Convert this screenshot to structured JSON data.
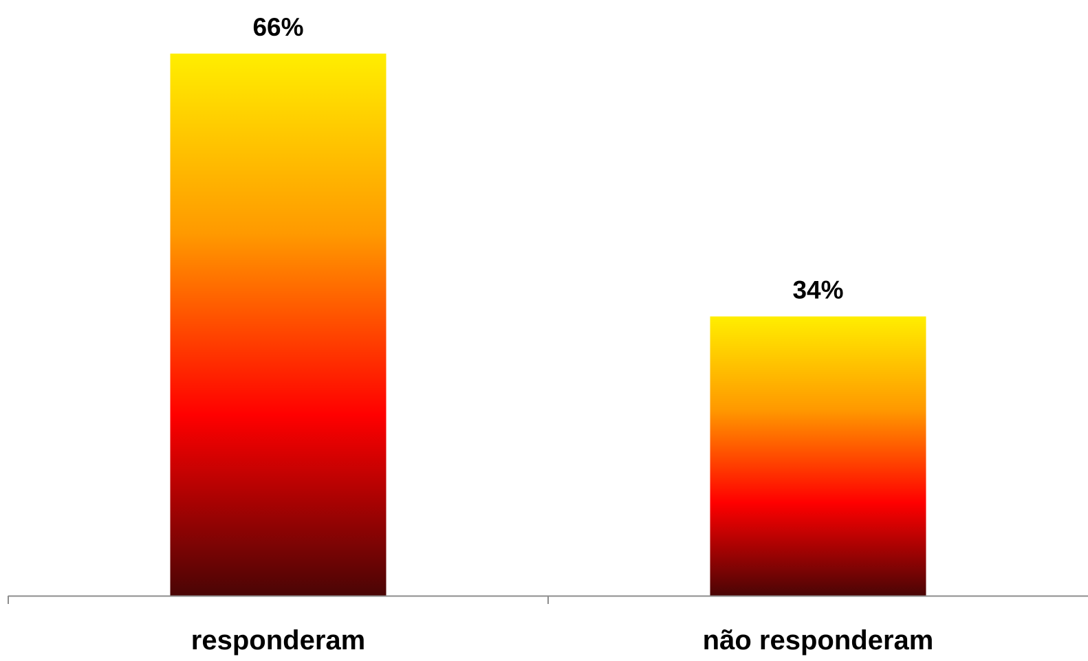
{
  "chart_data": {
    "type": "bar",
    "categories": [
      "responderam",
      "não responderam"
    ],
    "values": [
      66,
      34
    ],
    "data_labels": [
      "66%",
      "34%"
    ],
    "value_unit": "%",
    "title": "",
    "xlabel": "",
    "ylabel": "",
    "ylim": [
      0,
      66
    ],
    "grid": false,
    "legend": "none",
    "y_axis_visible": false,
    "bar_fill": {
      "style": "vertical-gradient",
      "stops": [
        "#FFEE00",
        "#FF9900",
        "#FF0000",
        "#4A0505"
      ]
    },
    "axis_color": "#8C8C8C"
  }
}
